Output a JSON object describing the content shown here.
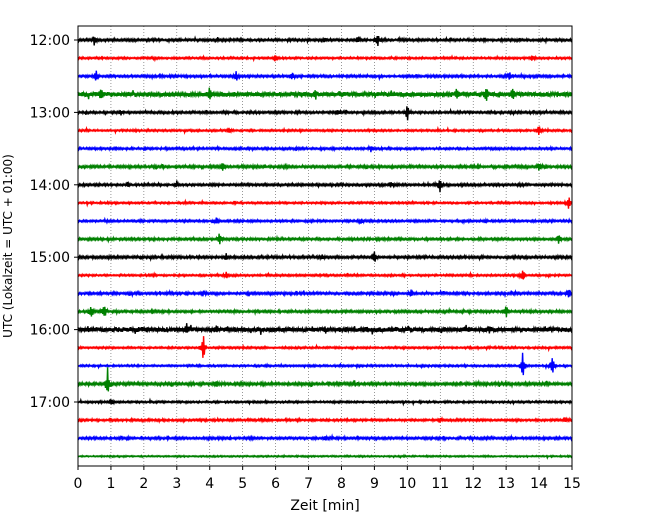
{
  "chart_data": {
    "type": "line",
    "title": "",
    "xlabel": "Zeit  [min]",
    "ylabel": "UTC (Lokalzeit = UTC + 01:00)",
    "xlim": [
      0,
      15
    ],
    "x_ticks": [
      0,
      1,
      2,
      3,
      4,
      5,
      6,
      7,
      8,
      9,
      10,
      11,
      12,
      13,
      14,
      15
    ],
    "y_tick_labels": [
      "12:00",
      "13:00",
      "14:00",
      "15:00",
      "16:00",
      "17:00"
    ],
    "grid": "vertical dotted at every minute",
    "color_cycle": [
      "#000000",
      "#ff0000",
      "#0000ff",
      "#008000"
    ],
    "rows": [
      {
        "start": "12:00",
        "color": "#000000",
        "noise": 1.0,
        "events": [
          {
            "x": 0.5,
            "amp": 6
          },
          {
            "x": 9.1,
            "amp": 9
          },
          {
            "x": 7.5,
            "amp": 3
          },
          {
            "x": 8.5,
            "amp": 3
          }
        ]
      },
      {
        "start": "12:15",
        "color": "#ff0000",
        "noise": 0.8,
        "events": [
          {
            "x": 6.0,
            "amp": 4
          },
          {
            "x": 13.8,
            "amp": 3
          }
        ]
      },
      {
        "start": "12:30",
        "color": "#0000ff",
        "noise": 1.0,
        "events": [
          {
            "x": 0.55,
            "amp": 8
          },
          {
            "x": 4.8,
            "amp": 4
          },
          {
            "x": 6.5,
            "amp": 4
          },
          {
            "x": 13.1,
            "amp": 5
          }
        ]
      },
      {
        "start": "12:45",
        "color": "#008000",
        "noise": 2.0,
        "events": [
          {
            "x": 0.7,
            "amp": 6
          },
          {
            "x": 4.0,
            "amp": 8
          },
          {
            "x": 12.4,
            "amp": 8
          },
          {
            "x": 13.2,
            "amp": 6
          },
          {
            "x": 11.5,
            "amp": 4
          },
          {
            "x": 7.2,
            "amp": 4
          }
        ]
      },
      {
        "start": "13:00",
        "color": "#000000",
        "noise": 1.0,
        "events": [
          {
            "x": 10.0,
            "amp": 9
          },
          {
            "x": 1.3,
            "amp": 3
          },
          {
            "x": 7.9,
            "amp": 3
          }
        ]
      },
      {
        "start": "13:15",
        "color": "#ff0000",
        "noise": 0.8,
        "events": [
          {
            "x": 4.6,
            "amp": 4
          },
          {
            "x": 14.0,
            "amp": 7
          }
        ]
      },
      {
        "start": "13:30",
        "color": "#0000ff",
        "noise": 0.9,
        "events": [
          {
            "x": 8.9,
            "amp": 4
          }
        ]
      },
      {
        "start": "13:45",
        "color": "#008000",
        "noise": 1.1,
        "events": [
          {
            "x": 4.4,
            "amp": 6
          },
          {
            "x": 14.0,
            "amp": 4
          }
        ]
      },
      {
        "start": "14:00",
        "color": "#000000",
        "noise": 1.0,
        "events": [
          {
            "x": 11.0,
            "amp": 8
          },
          {
            "x": 1.5,
            "amp": 3
          },
          {
            "x": 3.0,
            "amp": 3
          },
          {
            "x": 9.5,
            "amp": 3
          }
        ]
      },
      {
        "start": "14:15",
        "color": "#ff0000",
        "noise": 0.8,
        "events": [
          {
            "x": 14.9,
            "amp": 8
          }
        ]
      },
      {
        "start": "14:30",
        "color": "#0000ff",
        "noise": 0.9,
        "events": [
          {
            "x": 4.2,
            "amp": 3
          },
          {
            "x": 8.6,
            "amp": 3
          }
        ]
      },
      {
        "start": "14:45",
        "color": "#008000",
        "noise": 1.0,
        "events": [
          {
            "x": 4.3,
            "amp": 8
          },
          {
            "x": 14.6,
            "amp": 5
          }
        ]
      },
      {
        "start": "15:00",
        "color": "#000000",
        "noise": 1.1,
        "events": [
          {
            "x": 9.0,
            "amp": 8
          },
          {
            "x": 7.4,
            "amp": 3
          },
          {
            "x": 4.5,
            "amp": 3
          }
        ]
      },
      {
        "start": "15:15",
        "color": "#ff0000",
        "noise": 0.8,
        "events": [
          {
            "x": 4.5,
            "amp": 4
          },
          {
            "x": 13.5,
            "amp": 7
          }
        ]
      },
      {
        "start": "15:30",
        "color": "#0000ff",
        "noise": 1.0,
        "events": [
          {
            "x": 10.1,
            "amp": 4
          },
          {
            "x": 14.9,
            "amp": 5
          },
          {
            "x": 3.8,
            "amp": 3
          }
        ]
      },
      {
        "start": "15:45",
        "color": "#008000",
        "noise": 1.0,
        "events": [
          {
            "x": 0.4,
            "amp": 9
          },
          {
            "x": 0.8,
            "amp": 9
          },
          {
            "x": 13.0,
            "amp": 8
          }
        ]
      },
      {
        "start": "16:00",
        "color": "#000000",
        "noise": 2.0,
        "events": [
          {
            "x": 3.3,
            "amp": 4
          },
          {
            "x": 4.2,
            "amp": 4
          },
          {
            "x": 7.5,
            "amp": 3
          },
          {
            "x": 12.5,
            "amp": 3
          }
        ]
      },
      {
        "start": "16:15",
        "color": "#ff0000",
        "noise": 0.8,
        "events": [
          {
            "x": 3.8,
            "amp": 17
          }
        ]
      },
      {
        "start": "16:30",
        "color": "#0000ff",
        "noise": 0.8,
        "events": [
          {
            "x": 13.5,
            "amp": 15
          },
          {
            "x": 14.4,
            "amp": 12
          }
        ]
      },
      {
        "start": "16:45",
        "color": "#008000",
        "noise": 1.2,
        "events": [
          {
            "x": 0.9,
            "amp": 18
          },
          {
            "x": 4.2,
            "amp": 3
          },
          {
            "x": 8.4,
            "amp": 3
          }
        ]
      },
      {
        "start": "17:00",
        "color": "#000000",
        "noise": 0.8,
        "events": [
          {
            "x": 1.0,
            "amp": 4
          }
        ]
      },
      {
        "start": "17:15",
        "color": "#ff0000",
        "noise": 0.9,
        "events": [
          {
            "x": 11.0,
            "amp": 4
          },
          {
            "x": 14.8,
            "amp": 3
          }
        ]
      },
      {
        "start": "17:30",
        "color": "#0000ff",
        "noise": 1.0,
        "events": [
          {
            "x": 7.5,
            "amp": 2
          }
        ]
      },
      {
        "start": "17:45",
        "color": "#008000",
        "noise": 0.6,
        "events": []
      }
    ]
  }
}
